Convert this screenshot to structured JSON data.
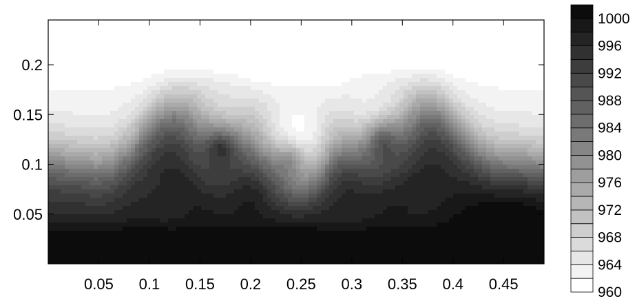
{
  "chart_data": {
    "type": "heatmap",
    "title": "",
    "xlabel": "",
    "ylabel": "",
    "xlim": [
      0,
      0.49
    ],
    "ylim": [
      0,
      0.245
    ],
    "x_ticks": [
      0.05,
      0.1,
      0.15,
      0.2,
      0.25,
      0.3,
      0.35,
      0.4,
      0.45
    ],
    "x_tick_labels": [
      "0.05",
      "0.1",
      "0.15",
      "0.2",
      "0.25",
      "0.3",
      "0.35",
      "0.4",
      "0.45"
    ],
    "y_ticks": [
      0.05,
      0.1,
      0.15,
      0.2
    ],
    "y_tick_labels": [
      "0.05",
      "0.1",
      "0.15",
      "0.2"
    ],
    "colorbar": {
      "min": 960,
      "max": 1002,
      "levels": [
        960,
        962,
        964,
        966,
        968,
        970,
        972,
        974,
        976,
        978,
        980,
        982,
        984,
        986,
        988,
        990,
        992,
        994,
        996,
        998,
        1000
      ],
      "tick_values": [
        960,
        964,
        968,
        972,
        976,
        980,
        984,
        988,
        992,
        996,
        1000
      ],
      "tick_labels": [
        "960",
        "964",
        "968",
        "972",
        "976",
        "980",
        "984",
        "988",
        "992",
        "996",
        "1000"
      ],
      "colormap": "grayscale, white (low) to black (high)"
    },
    "field_description": "Stratified two-layer density field with a sinusoidal Kelvin-Helmholtz-like interface rolling up around y≈0.12; light (~962–970) at the top, dark (~996–1000) at the bottom.",
    "grid": false,
    "colors": {
      "low": "#ffffff",
      "high": "#000000",
      "axis": "#000000"
    }
  }
}
